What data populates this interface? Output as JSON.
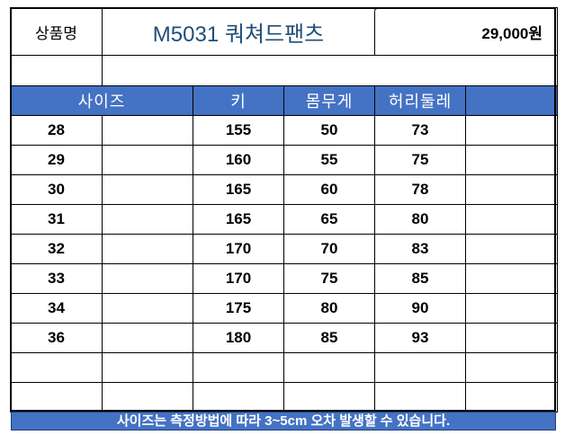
{
  "product": {
    "label": "상품명",
    "name": "M5031 쿼쳐드팬츠",
    "price": "29,000원"
  },
  "headers": [
    "사이즈",
    "키",
    "몸무게",
    "허리둘레",
    ""
  ],
  "rows": [
    [
      "28",
      "155",
      "50",
      "73"
    ],
    [
      "29",
      "160",
      "55",
      "75"
    ],
    [
      "30",
      "165",
      "60",
      "78"
    ],
    [
      "31",
      "165",
      "65",
      "80"
    ],
    [
      "32",
      "170",
      "70",
      "83"
    ],
    [
      "33",
      "170",
      "75",
      "85"
    ],
    [
      "34",
      "175",
      "80",
      "90"
    ],
    [
      "36",
      "180",
      "85",
      "93"
    ],
    [
      "",
      "",
      "",
      ""
    ],
    [
      "",
      "",
      "",
      ""
    ]
  ],
  "footer": "사이즈는 측정방법에 따라 3~5cm 오차 발생할 수 있습니다.",
  "colors": {
    "header_bg": "#4472c4",
    "title": "#1f4e79"
  }
}
